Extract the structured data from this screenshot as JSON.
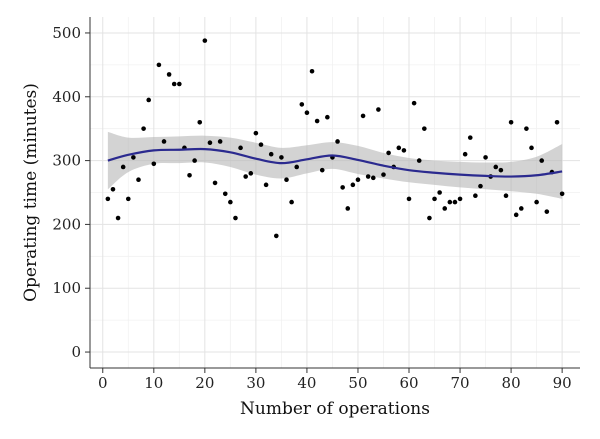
{
  "chart_data": {
    "type": "scatter",
    "title": "",
    "xlabel": "Number of operations",
    "ylabel": "Operating time (minutes)",
    "xlim": [
      -2.5,
      93.5
    ],
    "ylim": [
      -25,
      525
    ],
    "x_ticks": [
      0,
      10,
      20,
      30,
      40,
      50,
      60,
      70,
      80,
      90
    ],
    "y_ticks": [
      0,
      100,
      200,
      300,
      400,
      500
    ],
    "grid": true,
    "colors": {
      "panel_background": "#ffffff",
      "grid_major": "#e3e3e3",
      "grid_minor": "#f1f1f1",
      "points": "#000000",
      "smooth_line": "#2b2a8f",
      "confidence_band": "#b5b5b5"
    },
    "series": [
      {
        "type": "points",
        "x": [
          1,
          2,
          3,
          4,
          5,
          6,
          7,
          8,
          9,
          10,
          11,
          12,
          13,
          14,
          15,
          16,
          17,
          18,
          19,
          20,
          21,
          22,
          23,
          24,
          25,
          26,
          27,
          28,
          29,
          30,
          31,
          32,
          33,
          34,
          35,
          36,
          37,
          38,
          39,
          40,
          41,
          42,
          43,
          44,
          45,
          46,
          47,
          48,
          49,
          50,
          51,
          52,
          53,
          54,
          55,
          56,
          57,
          58,
          59,
          60,
          61,
          62,
          63,
          64,
          65,
          66,
          67,
          68,
          69,
          70,
          71,
          72,
          73,
          74,
          75,
          76,
          77,
          78,
          79,
          80,
          81,
          82,
          83,
          84,
          85,
          86,
          87,
          88,
          89,
          90
        ],
        "y": [
          240,
          255,
          210,
          290,
          240,
          305,
          270,
          350,
          395,
          295,
          450,
          330,
          435,
          420,
          420,
          320,
          277,
          300,
          360,
          488,
          328,
          265,
          330,
          248,
          235,
          210,
          320,
          275,
          280,
          343,
          325,
          262,
          310,
          182,
          305,
          270,
          235,
          290,
          388,
          375,
          440,
          362,
          285,
          368,
          305,
          330,
          258,
          225,
          262,
          270,
          370,
          275,
          273,
          380,
          278,
          312,
          290,
          320,
          316,
          240,
          390,
          300,
          350,
          210,
          240,
          250,
          225,
          235,
          235,
          240,
          310,
          336,
          245,
          260,
          305,
          275,
          290,
          285,
          245,
          360,
          215,
          225,
          350,
          320,
          235,
          300,
          220,
          282,
          360,
          248
        ]
      },
      {
        "type": "loess",
        "x": [
          1,
          5,
          10,
          15,
          20,
          25,
          30,
          35,
          40,
          45,
          50,
          55,
          60,
          65,
          70,
          75,
          80,
          85,
          90
        ],
        "y": [
          300,
          309,
          316,
          317,
          318,
          313,
          303,
          296,
          302,
          308,
          301,
          292,
          285,
          281,
          278,
          276,
          275,
          277,
          283
        ],
        "band_lower": [
          255,
          282,
          295,
          296,
          297,
          290,
          278,
          272,
          280,
          287,
          279,
          272,
          266,
          262,
          258,
          255,
          252,
          248,
          240
        ],
        "band_upper": [
          345,
          336,
          337,
          338,
          339,
          336,
          328,
          320,
          324,
          329,
          323,
          312,
          304,
          300,
          298,
          297,
          298,
          306,
          326
        ]
      }
    ]
  }
}
